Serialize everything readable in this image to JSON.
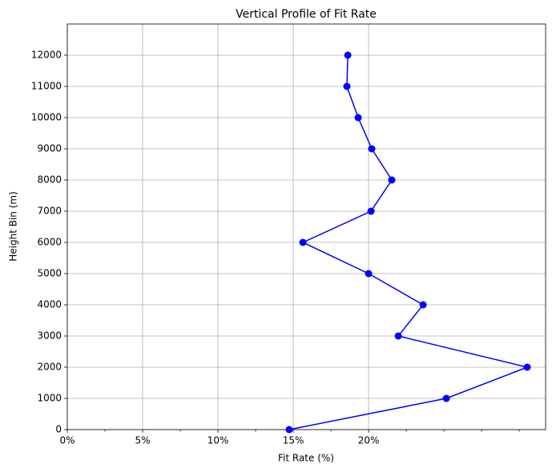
{
  "chart_data": {
    "type": "line",
    "title": "Vertical Profile of Fit Rate",
    "xlabel": "Fit Rate (%)",
    "ylabel": "Height Bin (m)",
    "y": [
      0,
      1000,
      2000,
      3000,
      4000,
      5000,
      6000,
      7000,
      8000,
      9000,
      10000,
      11000,
      12000
    ],
    "series": [
      {
        "color": "#0000ff",
        "values": [
          14.73,
          25.16,
          30.53,
          21.97,
          23.62,
          20.0,
          15.64,
          20.16,
          21.54,
          20.21,
          19.31,
          18.56,
          18.62
        ]
      }
    ],
    "xlim": [
      0,
      31.75
    ],
    "ylim": [
      0,
      13000
    ],
    "xticks": [
      {
        "value": 0,
        "label": "0%"
      },
      {
        "value": 5,
        "label": "5%"
      },
      {
        "value": 10,
        "label": "10%"
      },
      {
        "value": 15,
        "label": "15%"
      },
      {
        "value": 20,
        "label": "20%"
      }
    ],
    "xminorticks": [
      2.5,
      7.5,
      12.5,
      17.5,
      22.5,
      25,
      27.5,
      30
    ],
    "yticks": [
      0,
      1000,
      2000,
      3000,
      4000,
      5000,
      6000,
      7000,
      8000,
      9000,
      10000,
      11000,
      12000
    ],
    "grid": true
  }
}
